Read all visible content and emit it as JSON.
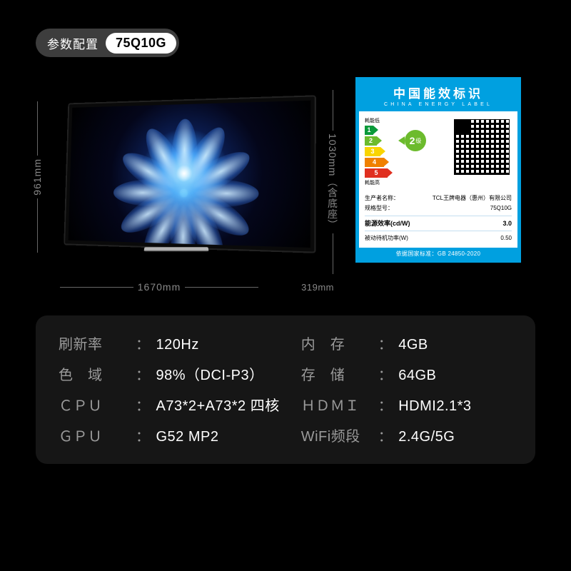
{
  "header": {
    "label": "参数配置",
    "model": "75Q10G"
  },
  "dimensions": {
    "height_no_stand": "961mm",
    "height_with_stand": "1030mm（含底座）",
    "width": "1670mm",
    "depth": "319mm"
  },
  "energy_label": {
    "title_cn": "中国能效标识",
    "title_en": "CHINA ENERGY LABEL",
    "low_text": "耗能低",
    "high_text": "耗能高",
    "grade_number": "2",
    "grade_suffix": "级",
    "scale": [
      "1",
      "2",
      "3",
      "4",
      "5"
    ],
    "colors": {
      "l1": "#0a9a3a",
      "l2": "#6cbb2d",
      "l3": "#f9d400",
      "l4": "#f08000",
      "l5": "#e03020",
      "brand": "#00a0e0"
    },
    "producer_label": "生产者名称：",
    "producer_value": "TCL王牌电器（惠州）有限公司",
    "model_label": "规格型号：",
    "model_value": "75Q10G",
    "efficiency_label": "能源效率(cd/W)",
    "efficiency_value": "3.0",
    "standby_label": "被动待机功率(W)",
    "standby_value": "0.50",
    "standard_text": "依据国家标准：GB 24850-2020"
  },
  "specs": {
    "refresh_label": "刷新率",
    "refresh_value": "120Hz",
    "memory_label": "内　存",
    "memory_value": "4GB",
    "gamut_label": "色　域",
    "gamut_value": "98%（DCI-P3）",
    "storage_label": "存　储",
    "storage_value": "64GB",
    "cpu_label": "ＣＰＵ",
    "cpu_value": "A73*2+A73*2 四核",
    "hdmi_label": "ＨＤＭＩ",
    "hdmi_value": "HDMI2.1*3",
    "gpu_label": "ＧＰＵ",
    "gpu_value": "G52 MP2",
    "wifi_label": "WiFi频段",
    "wifi_value": "2.4G/5G"
  },
  "colors": {
    "bg": "#000000",
    "panel": "rgba(40,40,40,0.55)",
    "muted": "#9a9a9a",
    "text": "#ffffff"
  }
}
